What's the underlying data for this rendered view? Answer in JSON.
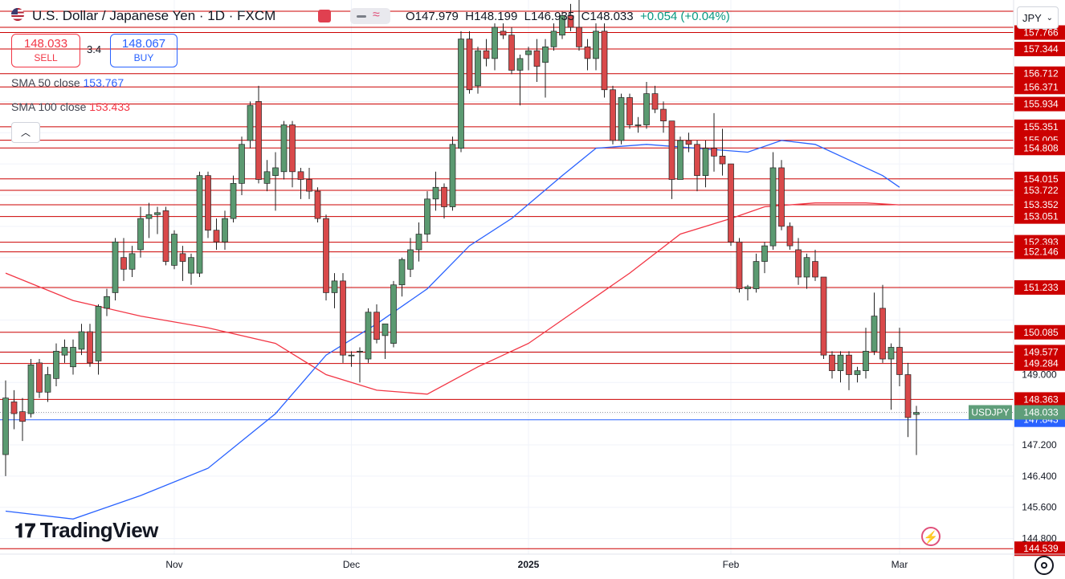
{
  "header": {
    "title": "U.S. Dollar / Japanese Yen · 1D · FXCM",
    "ohlc_o": "O147.979",
    "ohlc_h": "H148.199",
    "ohlc_l": "L146.935",
    "ohlc_c": "C148.033",
    "change": "+0.054 (+0.04%)"
  },
  "trade": {
    "sell_price": "148.033",
    "sell_label": "SELL",
    "spread": "3.4",
    "buy_price": "148.067",
    "buy_label": "BUY"
  },
  "indicators": {
    "sma50_label": "SMA 50 close",
    "sma50_value": "153.767",
    "sma100_label": "SMA 100 close",
    "sma100_value": "153.433"
  },
  "currency": "JPY",
  "logo": "TradingView",
  "colors": {
    "up": "#5b9a71",
    "down": "#d9494a",
    "sma50": "#2962ff",
    "sma100": "#f23645",
    "level": "#cc0000",
    "symbol_tag": "#5f9e7a",
    "support_tag": "#2962ff"
  },
  "icons": [
    "us-flag-icon",
    "collapse-arrow-icon",
    "chevron-down-icon",
    "lightning-icon",
    "gear-icon"
  ],
  "chart_data": {
    "type": "candlestick",
    "symbol": "USDJPY",
    "ylim": [
      144.4,
      158.6
    ],
    "y_ticks": [
      144.8,
      145.6,
      146.4,
      147.2,
      148.0,
      148.8,
      149.6,
      150.4,
      151.2,
      152.0,
      152.8,
      153.6,
      154.4,
      155.2,
      156.0
    ],
    "visible_y_labels": [
      "149.000",
      "147.200",
      "146.400",
      "145.600",
      "144.800"
    ],
    "x_labels": [
      {
        "label": "Nov",
        "index": 20
      },
      {
        "label": "Dec",
        "index": 41
      },
      {
        "label": "2025",
        "index": 62
      },
      {
        "label": "Feb",
        "index": 86
      },
      {
        "label": "Mar",
        "index": 106
      }
    ],
    "horizontal_levels": [
      157.766,
      157.344,
      156.712,
      156.371,
      155.934,
      155.351,
      155.005,
      154.808,
      154.015,
      153.722,
      153.352,
      153.051,
      152.393,
      152.146,
      151.233,
      150.085,
      149.577,
      149.284,
      148.363,
      144.539
    ],
    "support_level": 147.843,
    "last_price": 148.033,
    "symbol_tag": "USDJPY",
    "candles": [
      {
        "o": 146.95,
        "h": 148.85,
        "l": 146.4,
        "c": 148.4
      },
      {
        "o": 148.3,
        "h": 148.6,
        "l": 147.6,
        "c": 148.0
      },
      {
        "o": 148.05,
        "h": 148.4,
        "l": 147.3,
        "c": 147.8
      },
      {
        "o": 148.0,
        "h": 149.4,
        "l": 147.9,
        "c": 149.25
      },
      {
        "o": 149.3,
        "h": 149.4,
        "l": 148.4,
        "c": 148.55
      },
      {
        "o": 148.55,
        "h": 149.2,
        "l": 148.3,
        "c": 149.0
      },
      {
        "o": 148.9,
        "h": 149.8,
        "l": 148.7,
        "c": 149.6
      },
      {
        "o": 149.5,
        "h": 149.9,
        "l": 149.3,
        "c": 149.7
      },
      {
        "o": 149.2,
        "h": 149.9,
        "l": 149.0,
        "c": 149.7
      },
      {
        "o": 149.65,
        "h": 150.3,
        "l": 149.5,
        "c": 150.1
      },
      {
        "o": 150.1,
        "h": 150.3,
        "l": 149.2,
        "c": 149.3
      },
      {
        "o": 149.35,
        "h": 150.8,
        "l": 149.0,
        "c": 150.75
      },
      {
        "o": 150.7,
        "h": 151.2,
        "l": 150.5,
        "c": 151.0
      },
      {
        "o": 151.1,
        "h": 152.5,
        "l": 150.9,
        "c": 152.4
      },
      {
        "o": 152.0,
        "h": 152.5,
        "l": 151.4,
        "c": 151.7
      },
      {
        "o": 151.7,
        "h": 152.3,
        "l": 151.5,
        "c": 152.1
      },
      {
        "o": 152.2,
        "h": 153.3,
        "l": 152.0,
        "c": 153.0
      },
      {
        "o": 153.0,
        "h": 153.4,
        "l": 152.5,
        "c": 153.1
      },
      {
        "o": 153.1,
        "h": 153.3,
        "l": 152.6,
        "c": 153.15
      },
      {
        "o": 153.2,
        "h": 153.3,
        "l": 151.8,
        "c": 151.9
      },
      {
        "o": 151.8,
        "h": 152.7,
        "l": 151.7,
        "c": 152.6
      },
      {
        "o": 152.1,
        "h": 152.3,
        "l": 151.4,
        "c": 151.9
      },
      {
        "o": 151.6,
        "h": 152.1,
        "l": 151.3,
        "c": 152.0
      },
      {
        "o": 151.6,
        "h": 154.2,
        "l": 151.5,
        "c": 154.1
      },
      {
        "o": 154.1,
        "h": 154.2,
        "l": 152.5,
        "c": 152.7
      },
      {
        "o": 152.7,
        "h": 153.0,
        "l": 152.2,
        "c": 152.4
      },
      {
        "o": 152.4,
        "h": 153.2,
        "l": 152.2,
        "c": 153.0
      },
      {
        "o": 153.0,
        "h": 154.1,
        "l": 152.9,
        "c": 153.9
      },
      {
        "o": 153.9,
        "h": 155.1,
        "l": 153.6,
        "c": 154.9
      },
      {
        "o": 155.0,
        "h": 156.0,
        "l": 154.8,
        "c": 155.9
      },
      {
        "o": 156.0,
        "h": 156.4,
        "l": 153.9,
        "c": 154.0
      },
      {
        "o": 153.9,
        "h": 154.5,
        "l": 153.7,
        "c": 154.2
      },
      {
        "o": 154.1,
        "h": 154.7,
        "l": 153.2,
        "c": 154.3
      },
      {
        "o": 154.2,
        "h": 155.5,
        "l": 154.0,
        "c": 155.4
      },
      {
        "o": 155.4,
        "h": 155.5,
        "l": 153.8,
        "c": 154.2
      },
      {
        "o": 154.2,
        "h": 154.3,
        "l": 153.5,
        "c": 154.0
      },
      {
        "o": 154.0,
        "h": 154.3,
        "l": 153.5,
        "c": 153.7
      },
      {
        "o": 153.7,
        "h": 153.8,
        "l": 152.9,
        "c": 153.0
      },
      {
        "o": 153.0,
        "h": 153.1,
        "l": 150.9,
        "c": 151.1
      },
      {
        "o": 151.1,
        "h": 151.6,
        "l": 150.7,
        "c": 151.4
      },
      {
        "o": 151.4,
        "h": 151.6,
        "l": 149.3,
        "c": 149.5
      },
      {
        "o": 149.5,
        "h": 149.6,
        "l": 149.2,
        "c": 149.5
      },
      {
        "o": 149.6,
        "h": 149.7,
        "l": 148.8,
        "c": 149.6
      },
      {
        "o": 149.4,
        "h": 150.7,
        "l": 149.3,
        "c": 150.6
      },
      {
        "o": 150.6,
        "h": 150.8,
        "l": 149.8,
        "c": 149.9
      },
      {
        "o": 150.0,
        "h": 150.3,
        "l": 149.4,
        "c": 150.3
      },
      {
        "o": 149.8,
        "h": 151.4,
        "l": 149.7,
        "c": 151.3
      },
      {
        "o": 151.3,
        "h": 152.0,
        "l": 151.0,
        "c": 151.95
      },
      {
        "o": 151.7,
        "h": 152.5,
        "l": 151.5,
        "c": 152.2
      },
      {
        "o": 152.2,
        "h": 152.9,
        "l": 151.9,
        "c": 152.6
      },
      {
        "o": 152.6,
        "h": 153.7,
        "l": 152.4,
        "c": 153.5
      },
      {
        "o": 153.5,
        "h": 154.2,
        "l": 153.2,
        "c": 153.8
      },
      {
        "o": 153.8,
        "h": 153.9,
        "l": 153.0,
        "c": 153.3
      },
      {
        "o": 153.3,
        "h": 155.1,
        "l": 153.2,
        "c": 154.9
      },
      {
        "o": 154.8,
        "h": 157.8,
        "l": 154.7,
        "c": 157.6
      },
      {
        "o": 157.6,
        "h": 157.8,
        "l": 156.2,
        "c": 156.3
      },
      {
        "o": 156.4,
        "h": 157.4,
        "l": 156.2,
        "c": 157.3
      },
      {
        "o": 157.3,
        "h": 157.6,
        "l": 156.9,
        "c": 157.1
      },
      {
        "o": 157.1,
        "h": 158.0,
        "l": 156.8,
        "c": 157.9
      },
      {
        "o": 157.8,
        "h": 158.0,
        "l": 157.6,
        "c": 157.7
      },
      {
        "o": 157.7,
        "h": 157.9,
        "l": 156.7,
        "c": 156.8
      },
      {
        "o": 156.8,
        "h": 157.2,
        "l": 155.9,
        "c": 157.1
      },
      {
        "o": 157.2,
        "h": 157.4,
        "l": 156.8,
        "c": 157.3
      },
      {
        "o": 157.3,
        "h": 157.6,
        "l": 156.5,
        "c": 156.9
      },
      {
        "o": 157.0,
        "h": 157.6,
        "l": 156.1,
        "c": 157.4
      },
      {
        "o": 157.4,
        "h": 158.0,
        "l": 157.3,
        "c": 157.8
      },
      {
        "o": 157.7,
        "h": 158.3,
        "l": 157.6,
        "c": 158.2
      },
      {
        "o": 158.2,
        "h": 158.5,
        "l": 157.8,
        "c": 157.9
      },
      {
        "o": 157.9,
        "h": 158.9,
        "l": 157.3,
        "c": 157.4
      },
      {
        "o": 157.4,
        "h": 157.6,
        "l": 156.8,
        "c": 157.1
      },
      {
        "o": 157.1,
        "h": 158.0,
        "l": 156.8,
        "c": 157.8
      },
      {
        "o": 157.8,
        "h": 158.0,
        "l": 156.1,
        "c": 156.3
      },
      {
        "o": 156.3,
        "h": 156.4,
        "l": 154.9,
        "c": 155.0
      },
      {
        "o": 155.0,
        "h": 156.2,
        "l": 154.9,
        "c": 156.1
      },
      {
        "o": 156.1,
        "h": 156.2,
        "l": 155.3,
        "c": 155.4
      },
      {
        "o": 155.4,
        "h": 155.6,
        "l": 155.2,
        "c": 155.4
      },
      {
        "o": 155.4,
        "h": 156.5,
        "l": 155.3,
        "c": 156.2
      },
      {
        "o": 156.2,
        "h": 156.4,
        "l": 155.7,
        "c": 155.8
      },
      {
        "o": 155.8,
        "h": 156.0,
        "l": 155.2,
        "c": 155.5
      },
      {
        "o": 155.5,
        "h": 155.5,
        "l": 153.5,
        "c": 154.0
      },
      {
        "o": 154.0,
        "h": 155.1,
        "l": 154.0,
        "c": 155.0
      },
      {
        "o": 155.0,
        "h": 155.2,
        "l": 154.7,
        "c": 154.9
      },
      {
        "o": 154.9,
        "h": 155.0,
        "l": 153.7,
        "c": 154.1
      },
      {
        "o": 154.1,
        "h": 155.0,
        "l": 153.8,
        "c": 154.8
      },
      {
        "o": 154.8,
        "h": 155.7,
        "l": 154.2,
        "c": 154.6
      },
      {
        "o": 154.6,
        "h": 155.3,
        "l": 154.1,
        "c": 154.4
      },
      {
        "o": 154.4,
        "h": 154.4,
        "l": 152.3,
        "c": 152.4
      },
      {
        "o": 152.4,
        "h": 152.5,
        "l": 151.1,
        "c": 151.2
      },
      {
        "o": 151.2,
        "h": 151.3,
        "l": 150.9,
        "c": 151.25
      },
      {
        "o": 151.2,
        "h": 152.1,
        "l": 151.1,
        "c": 151.9
      },
      {
        "o": 151.9,
        "h": 152.4,
        "l": 151.6,
        "c": 152.3
      },
      {
        "o": 152.3,
        "h": 154.7,
        "l": 152.2,
        "c": 154.3
      },
      {
        "o": 154.3,
        "h": 154.5,
        "l": 152.7,
        "c": 152.8
      },
      {
        "o": 152.8,
        "h": 152.9,
        "l": 152.2,
        "c": 152.3
      },
      {
        "o": 152.2,
        "h": 152.5,
        "l": 151.3,
        "c": 151.5
      },
      {
        "o": 151.5,
        "h": 152.1,
        "l": 151.2,
        "c": 152.0
      },
      {
        "o": 151.9,
        "h": 152.2,
        "l": 151.4,
        "c": 151.5
      },
      {
        "o": 151.5,
        "h": 151.5,
        "l": 149.4,
        "c": 149.5
      },
      {
        "o": 149.5,
        "h": 149.6,
        "l": 148.9,
        "c": 149.1
      },
      {
        "o": 149.1,
        "h": 149.6,
        "l": 148.8,
        "c": 149.5
      },
      {
        "o": 149.5,
        "h": 149.6,
        "l": 148.6,
        "c": 149.0
      },
      {
        "o": 149.0,
        "h": 149.2,
        "l": 148.8,
        "c": 149.1
      },
      {
        "o": 149.1,
        "h": 150.2,
        "l": 148.9,
        "c": 149.6
      },
      {
        "o": 149.6,
        "h": 151.1,
        "l": 149.5,
        "c": 150.5
      },
      {
        "o": 150.7,
        "h": 151.3,
        "l": 149.3,
        "c": 149.4
      },
      {
        "o": 149.4,
        "h": 149.8,
        "l": 148.1,
        "c": 149.7
      },
      {
        "o": 149.7,
        "h": 150.2,
        "l": 148.7,
        "c": 149.0
      },
      {
        "o": 149.0,
        "h": 149.3,
        "l": 147.4,
        "c": 147.9
      },
      {
        "o": 147.98,
        "h": 148.2,
        "l": 146.94,
        "c": 148.03
      }
    ],
    "sma50": [
      [
        0,
        145.5
      ],
      [
        8,
        145.3
      ],
      [
        16,
        145.9
      ],
      [
        24,
        146.6
      ],
      [
        32,
        148.0
      ],
      [
        38,
        149.5
      ],
      [
        44,
        150.3
      ],
      [
        50,
        151.2
      ],
      [
        55,
        152.3
      ],
      [
        60,
        153.0
      ],
      [
        66,
        154.1
      ],
      [
        70,
        154.8
      ],
      [
        76,
        154.9
      ],
      [
        82,
        154.8
      ],
      [
        88,
        154.7
      ],
      [
        92,
        155.0
      ],
      [
        96,
        154.9
      ],
      [
        100,
        154.5
      ],
      [
        104,
        154.1
      ],
      [
        106,
        153.8
      ]
    ],
    "sma100": [
      [
        0,
        151.6
      ],
      [
        8,
        150.9
      ],
      [
        16,
        150.5
      ],
      [
        24,
        150.2
      ],
      [
        32,
        149.8
      ],
      [
        38,
        149.0
      ],
      [
        44,
        148.6
      ],
      [
        50,
        148.5
      ],
      [
        56,
        149.2
      ],
      [
        62,
        149.8
      ],
      [
        68,
        150.7
      ],
      [
        74,
        151.6
      ],
      [
        80,
        152.6
      ],
      [
        86,
        153.0
      ],
      [
        90,
        153.3
      ],
      [
        96,
        153.4
      ],
      [
        102,
        153.4
      ],
      [
        106,
        153.35
      ]
    ]
  }
}
